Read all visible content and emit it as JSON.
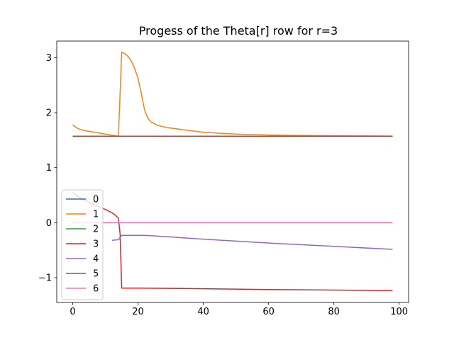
{
  "chart_data": {
    "type": "line",
    "title": "Progess of the Theta[r] row for r=3",
    "xlabel": "",
    "ylabel": "",
    "xlim": [
      -4.9,
      102.9
    ],
    "ylim": [
      -1.45,
      3.3
    ],
    "xticks": [
      0,
      20,
      40,
      60,
      80,
      100
    ],
    "yticks": [
      -1,
      0,
      1,
      2,
      3
    ],
    "xtick_labels": [
      "0",
      "20",
      "40",
      "60",
      "80",
      "100"
    ],
    "ytick_labels": [
      "−1",
      "0",
      "1",
      "2",
      "3"
    ],
    "grid": false,
    "legend_position": "lower-left",
    "series": [
      {
        "name": "0",
        "color": "#1f77b4",
        "points": [
          [
            0,
            1.571
          ],
          [
            98,
            1.571
          ]
        ]
      },
      {
        "name": "1",
        "color": "#ff7f0e",
        "points": [
          [
            0,
            1.78
          ],
          [
            1,
            1.73
          ],
          [
            2,
            1.7
          ],
          [
            4,
            1.67
          ],
          [
            6,
            1.65
          ],
          [
            8,
            1.63
          ],
          [
            10,
            1.61
          ],
          [
            12,
            1.59
          ],
          [
            14,
            1.57
          ],
          [
            15,
            3.1
          ],
          [
            16,
            3.07
          ],
          [
            17,
            3.02
          ],
          [
            18,
            2.93
          ],
          [
            19,
            2.8
          ],
          [
            20,
            2.62
          ],
          [
            21,
            2.35
          ],
          [
            22,
            2.05
          ],
          [
            23,
            1.9
          ],
          [
            24,
            1.83
          ],
          [
            26,
            1.77
          ],
          [
            28,
            1.74
          ],
          [
            30,
            1.72
          ],
          [
            35,
            1.68
          ],
          [
            40,
            1.645
          ],
          [
            45,
            1.625
          ],
          [
            50,
            1.61
          ],
          [
            55,
            1.6
          ],
          [
            60,
            1.592
          ],
          [
            70,
            1.584
          ],
          [
            80,
            1.579
          ],
          [
            90,
            1.576
          ],
          [
            98,
            1.574
          ]
        ]
      },
      {
        "name": "2",
        "color": "#2ca02c",
        "points": [
          [
            0,
            1.571
          ],
          [
            98,
            1.571
          ]
        ]
      },
      {
        "name": "3",
        "color": "#d62728",
        "points": [
          [
            0,
            0.55
          ],
          [
            2,
            0.46
          ],
          [
            4,
            0.4
          ],
          [
            6,
            0.34
          ],
          [
            8,
            0.29
          ],
          [
            10,
            0.24
          ],
          [
            12,
            0.18
          ],
          [
            13,
            0.14
          ],
          [
            14,
            0.08
          ],
          [
            14.5,
            -0.2
          ],
          [
            15,
            -1.19
          ],
          [
            20,
            -1.19
          ],
          [
            40,
            -1.2
          ],
          [
            60,
            -1.215
          ],
          [
            80,
            -1.225
          ],
          [
            98,
            -1.235
          ]
        ]
      },
      {
        "name": "4",
        "color": "#9467bd",
        "points": [
          [
            12,
            -0.32
          ],
          [
            14,
            -0.31
          ],
          [
            15,
            -0.23
          ],
          [
            18,
            -0.23
          ],
          [
            22,
            -0.23
          ],
          [
            30,
            -0.26
          ],
          [
            40,
            -0.3
          ],
          [
            60,
            -0.37
          ],
          [
            80,
            -0.43
          ],
          [
            98,
            -0.485
          ]
        ]
      },
      {
        "name": "5",
        "color": "#8c564b",
        "points": [
          [
            0,
            1.571
          ],
          [
            98,
            1.571
          ]
        ]
      },
      {
        "name": "6",
        "color": "#e377c2",
        "points": [
          [
            0,
            0.0
          ],
          [
            98,
            0.0
          ]
        ]
      }
    ]
  }
}
